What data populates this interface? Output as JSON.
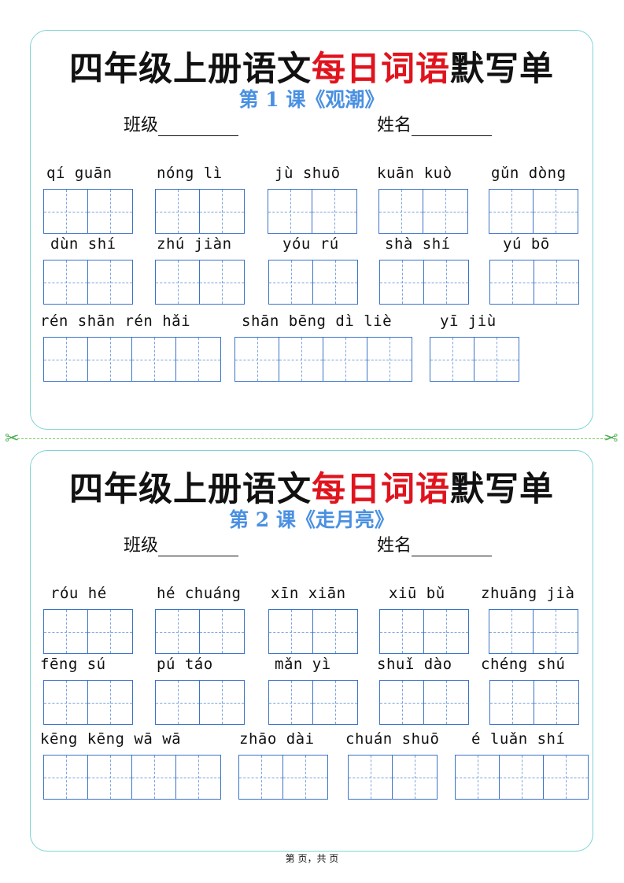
{
  "worksheets": [
    {
      "title_pre": "四年级上册语文",
      "title_red": "每日词语",
      "title_post": "默写单",
      "lesson": "第 1 课《观潮》",
      "class_label": "班级",
      "name_label": "姓名",
      "words": [
        {
          "pinyin": "qí  guān",
          "chars": 2
        },
        {
          "pinyin": "nóng lì",
          "chars": 2
        },
        {
          "pinyin": "jù  shuō",
          "chars": 2
        },
        {
          "pinyin": "kuān kuò",
          "chars": 2
        },
        {
          "pinyin": "gǔn dòng",
          "chars": 2
        },
        {
          "pinyin": "dùn shí",
          "chars": 2
        },
        {
          "pinyin": "zhú jiàn",
          "chars": 2
        },
        {
          "pinyin": "yóu rú",
          "chars": 2
        },
        {
          "pinyin": "shà shí",
          "chars": 2
        },
        {
          "pinyin": "yú  bō",
          "chars": 2
        },
        {
          "pinyin": "rén shān rén hǎi",
          "chars": 4
        },
        {
          "pinyin": "shān bēng dì liè",
          "chars": 4
        },
        {
          "pinyin": "yī  jiù",
          "chars": 2
        }
      ]
    },
    {
      "title_pre": "四年级上册语文",
      "title_red": "每日词语",
      "title_post": "默写单",
      "lesson": "第 2 课《走月亮》",
      "class_label": "班级",
      "name_label": "姓名",
      "words": [
        {
          "pinyin": "róu hé",
          "chars": 2
        },
        {
          "pinyin": "hé chuáng",
          "chars": 2
        },
        {
          "pinyin": "xīn xiān",
          "chars": 2
        },
        {
          "pinyin": "xiū bǔ",
          "chars": 2
        },
        {
          "pinyin": "zhuāng jià",
          "chars": 2
        },
        {
          "pinyin": "fēng sú",
          "chars": 2
        },
        {
          "pinyin": "pú  táo",
          "chars": 2
        },
        {
          "pinyin": "mǎn  yì",
          "chars": 2
        },
        {
          "pinyin": "shuǐ dào",
          "chars": 2
        },
        {
          "pinyin": "chéng shú",
          "chars": 2
        },
        {
          "pinyin": "kēng kēng wā  wā",
          "chars": 4
        },
        {
          "pinyin": "zhāo dài",
          "chars": 2
        },
        {
          "pinyin": "chuán shuō",
          "chars": 2
        },
        {
          "pinyin": "é  luǎn shí",
          "chars": 3
        }
      ]
    }
  ],
  "footer": "第   页，共   页",
  "colors": {
    "accent_red": "#e0141e",
    "lesson_blue": "#4a90e2",
    "grid_blue": "#3b73c8",
    "card_border": "#7fd3d6",
    "cut_line": "#7ccf6a"
  },
  "icons": {
    "cut": "scissors-icon"
  }
}
